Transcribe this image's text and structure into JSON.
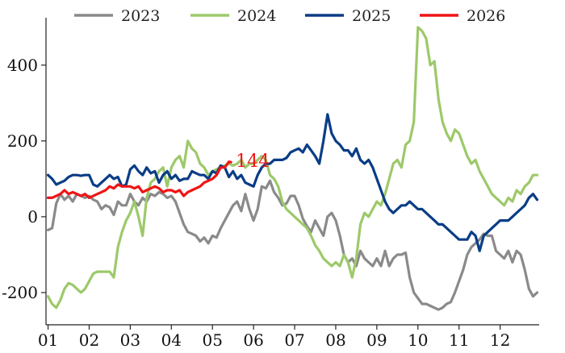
{
  "chart_data": {
    "type": "line",
    "title": "",
    "xlabel": "",
    "ylabel": "",
    "x_ticks": [
      "01",
      "02",
      "03",
      "04",
      "05",
      "06",
      "07",
      "08",
      "09",
      "10",
      "11",
      "12"
    ],
    "xlim": [
      0.95,
      12.95
    ],
    "ylim": [
      -285,
      525
    ],
    "y_ticks": [
      -200,
      0,
      200,
      400
    ],
    "grid": false,
    "legend_position": "top",
    "series": [
      {
        "name": "2023",
        "color": "#8a8a8a",
        "x": [
          1.0,
          1.1,
          1.2,
          1.3,
          1.4,
          1.5,
          1.6,
          1.7,
          1.8,
          1.9,
          2.0,
          2.1,
          2.2,
          2.3,
          2.4,
          2.5,
          2.6,
          2.7,
          2.8,
          2.9,
          3.0,
          3.1,
          3.2,
          3.3,
          3.4,
          3.5,
          3.6,
          3.7,
          3.8,
          3.9,
          4.0,
          4.1,
          4.2,
          4.3,
          4.4,
          4.5,
          4.6,
          4.7,
          4.8,
          4.9,
          5.0,
          5.1,
          5.2,
          5.3,
          5.4,
          5.5,
          5.6,
          5.7,
          5.8,
          5.9,
          6.0,
          6.1,
          6.2,
          6.3,
          6.4,
          6.5,
          6.6,
          6.7,
          6.8,
          6.9,
          7.0,
          7.1,
          7.2,
          7.3,
          7.4,
          7.5,
          7.6,
          7.7,
          7.8,
          7.9,
          8.0,
          8.1,
          8.2,
          8.3,
          8.4,
          8.5,
          8.6,
          8.7,
          8.8,
          8.9,
          9.0,
          9.1,
          9.2,
          9.3,
          9.4,
          9.5,
          9.6,
          9.7,
          9.8,
          9.9,
          10.0,
          10.1,
          10.2,
          10.3,
          10.4,
          10.5,
          10.6,
          10.7,
          10.8,
          10.9,
          11.0,
          11.1,
          11.2,
          11.3,
          11.4,
          11.5,
          11.6,
          11.7,
          11.8,
          11.9,
          12.0,
          12.1,
          12.2,
          12.3,
          12.4,
          12.5,
          12.6,
          12.7,
          12.8,
          12.9
        ],
        "values": [
          -35,
          -30,
          35,
          60,
          45,
          55,
          40,
          60,
          55,
          50,
          55,
          45,
          40,
          20,
          30,
          25,
          5,
          40,
          30,
          30,
          60,
          40,
          30,
          50,
          40,
          60,
          55,
          65,
          60,
          50,
          55,
          40,
          10,
          -20,
          -40,
          -45,
          -50,
          -65,
          -55,
          -70,
          -50,
          -55,
          -30,
          -10,
          10,
          30,
          40,
          15,
          60,
          20,
          -10,
          20,
          80,
          75,
          95,
          65,
          50,
          30,
          35,
          55,
          55,
          30,
          -5,
          -25,
          -40,
          -10,
          -30,
          -50,
          0,
          10,
          -10,
          -50,
          -100,
          -120,
          -110,
          -130,
          -90,
          -110,
          -120,
          -130,
          -110,
          -130,
          -90,
          -130,
          -110,
          -100,
          -100,
          -95,
          -160,
          -200,
          -215,
          -230,
          -230,
          -235,
          -240,
          -245,
          -240,
          -230,
          -225,
          -200,
          -170,
          -140,
          -100,
          -80,
          -70,
          -60,
          -45,
          -50,
          -50,
          -90,
          -100,
          -110,
          -90,
          -120,
          -90,
          -100,
          -140,
          -190,
          -210,
          -200
        ]
      },
      {
        "name": "2024",
        "color": "#9dc96a",
        "x": [
          1.0,
          1.1,
          1.2,
          1.3,
          1.4,
          1.5,
          1.6,
          1.7,
          1.8,
          1.9,
          2.0,
          2.1,
          2.2,
          2.3,
          2.4,
          2.5,
          2.6,
          2.7,
          2.8,
          2.9,
          3.0,
          3.1,
          3.2,
          3.3,
          3.4,
          3.5,
          3.6,
          3.7,
          3.8,
          3.9,
          4.0,
          4.1,
          4.2,
          4.3,
          4.4,
          4.5,
          4.6,
          4.7,
          4.8,
          4.9,
          5.0,
          5.1,
          5.2,
          5.3,
          5.4,
          5.5,
          5.6,
          5.7,
          5.8,
          5.9,
          6.0,
          6.1,
          6.2,
          6.3,
          6.4,
          6.5,
          6.6,
          6.7,
          6.8,
          6.9,
          7.0,
          7.1,
          7.2,
          7.3,
          7.4,
          7.5,
          7.6,
          7.7,
          7.8,
          7.9,
          8.0,
          8.1,
          8.2,
          8.3,
          8.4,
          8.5,
          8.6,
          8.7,
          8.8,
          8.9,
          9.0,
          9.1,
          9.2,
          9.3,
          9.4,
          9.5,
          9.6,
          9.7,
          9.8,
          9.9,
          10.0,
          10.1,
          10.2,
          10.3,
          10.4,
          10.5,
          10.6,
          10.7,
          10.8,
          10.9,
          11.0,
          11.1,
          11.2,
          11.3,
          11.4,
          11.5,
          11.6,
          11.7,
          11.8,
          11.9,
          12.0,
          12.1,
          12.2,
          12.3,
          12.4,
          12.5,
          12.6,
          12.7,
          12.8,
          12.9
        ],
        "values": [
          -210,
          -230,
          -240,
          -220,
          -190,
          -175,
          -180,
          -190,
          -200,
          -190,
          -170,
          -150,
          -145,
          -145,
          -145,
          -145,
          -160,
          -80,
          -40,
          -10,
          10,
          40,
          0,
          -50,
          50,
          90,
          100,
          120,
          130,
          80,
          130,
          150,
          160,
          130,
          200,
          180,
          170,
          140,
          130,
          110,
          120,
          125,
          130,
          135,
          140,
          135,
          140,
          150,
          130,
          140,
          140,
          150,
          160,
          150,
          110,
          100,
          80,
          40,
          20,
          10,
          0,
          -10,
          -20,
          -30,
          -50,
          -75,
          -90,
          -110,
          -120,
          -130,
          -120,
          -130,
          -100,
          -120,
          -160,
          -110,
          -20,
          10,
          0,
          20,
          40,
          30,
          60,
          100,
          140,
          150,
          130,
          190,
          200,
          250,
          500,
          490,
          470,
          400,
          410,
          310,
          250,
          220,
          200,
          230,
          220,
          190,
          160,
          140,
          150,
          120,
          100,
          80,
          60,
          50,
          40,
          30,
          50,
          40,
          70,
          60,
          80,
          90,
          110,
          110
        ]
      },
      {
        "name": "2025",
        "color": "#0a3d86",
        "x": [
          1.0,
          1.1,
          1.2,
          1.3,
          1.4,
          1.5,
          1.6,
          1.7,
          1.8,
          1.9,
          2.0,
          2.1,
          2.2,
          2.3,
          2.4,
          2.5,
          2.6,
          2.7,
          2.8,
          2.9,
          3.0,
          3.1,
          3.2,
          3.3,
          3.4,
          3.5,
          3.6,
          3.7,
          3.8,
          3.9,
          4.0,
          4.1,
          4.2,
          4.3,
          4.4,
          4.5,
          4.6,
          4.7,
          4.8,
          4.9,
          5.0,
          5.1,
          5.2,
          5.3,
          5.4,
          5.5,
          5.6,
          5.7,
          5.8,
          5.9,
          6.0,
          6.1,
          6.2,
          6.3,
          6.4,
          6.5,
          6.6,
          6.7,
          6.8,
          6.9,
          7.0,
          7.1,
          7.2,
          7.3,
          7.4,
          7.5,
          7.6,
          7.7,
          7.8,
          7.9,
          8.0,
          8.1,
          8.2,
          8.3,
          8.4,
          8.5,
          8.6,
          8.7,
          8.8,
          8.9,
          9.0,
          9.1,
          9.2,
          9.3,
          9.4,
          9.5,
          9.6,
          9.7,
          9.8,
          9.9,
          10.0,
          10.1,
          10.2,
          10.3,
          10.4,
          10.5,
          10.6,
          10.7,
          10.8,
          10.9,
          11.0,
          11.1,
          11.2,
          11.3,
          11.4,
          11.5,
          11.6,
          11.7,
          11.8,
          11.9,
          12.0,
          12.1,
          12.2,
          12.3,
          12.4,
          12.5,
          12.6,
          12.7,
          12.8,
          12.9
        ],
        "values": [
          110,
          100,
          85,
          90,
          95,
          105,
          110,
          110,
          108,
          110,
          110,
          85,
          80,
          90,
          100,
          110,
          100,
          105,
          80,
          85,
          125,
          135,
          120,
          110,
          130,
          115,
          120,
          90,
          110,
          120,
          100,
          110,
          95,
          100,
          100,
          120,
          115,
          110,
          110,
          100,
          120,
          115,
          135,
          130,
          105,
          120,
          100,
          110,
          90,
          85,
          80,
          110,
          130,
          140,
          140,
          150,
          150,
          150,
          155,
          170,
          175,
          180,
          170,
          190,
          175,
          160,
          140,
          200,
          270,
          220,
          200,
          190,
          175,
          175,
          160,
          180,
          150,
          140,
          150,
          130,
          100,
          70,
          40,
          20,
          10,
          20,
          30,
          30,
          40,
          30,
          20,
          20,
          10,
          0,
          -10,
          -20,
          -20,
          -30,
          -40,
          -50,
          -60,
          -60,
          -60,
          -40,
          -50,
          -90,
          -50,
          -40,
          -30,
          -20,
          -10,
          -10,
          -10,
          0,
          10,
          20,
          30,
          50,
          60,
          45
        ]
      },
      {
        "name": "2026",
        "color": "#f01414",
        "x": [
          1.0,
          1.1,
          1.2,
          1.3,
          1.4,
          1.5,
          1.6,
          1.7,
          1.8,
          1.9,
          2.0,
          2.1,
          2.2,
          2.3,
          2.4,
          2.5,
          2.6,
          2.7,
          2.8,
          2.9,
          3.0,
          3.1,
          3.2,
          3.3,
          3.4,
          3.5,
          3.6,
          3.7,
          3.8,
          3.9,
          4.0,
          4.1,
          4.2,
          4.3,
          4.4,
          4.5,
          4.6,
          4.7,
          4.8,
          4.9,
          5.0,
          5.1,
          5.2,
          5.3,
          5.4,
          5.45
        ],
        "values": [
          50,
          50,
          55,
          60,
          70,
          60,
          65,
          60,
          55,
          60,
          50,
          55,
          60,
          65,
          70,
          80,
          75,
          85,
          80,
          80,
          80,
          75,
          80,
          65,
          70,
          75,
          80,
          75,
          65,
          70,
          70,
          65,
          70,
          55,
          65,
          70,
          75,
          80,
          90,
          95,
          100,
          110,
          130,
          130,
          145,
          144
        ]
      }
    ],
    "end_label": {
      "series": "2026",
      "text": "144"
    }
  }
}
